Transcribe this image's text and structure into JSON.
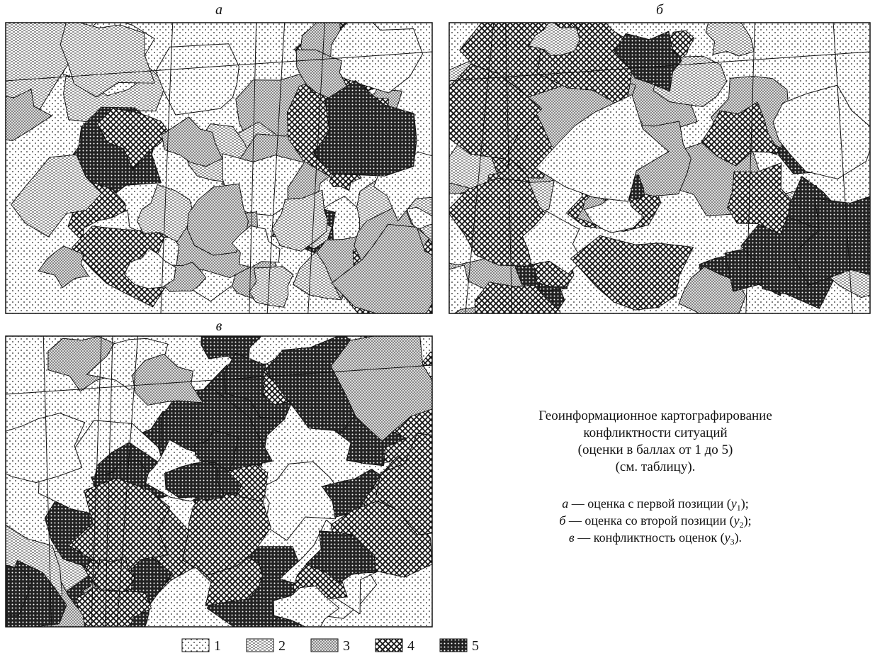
{
  "panels": [
    {
      "label": "а"
    },
    {
      "label": "б"
    },
    {
      "label": "в"
    }
  ],
  "legend": [
    "1",
    "2",
    "3",
    "4",
    "5"
  ],
  "caption": {
    "title": [
      "Геоинформационное картографирование",
      "конфликтности ситуаций",
      "(оценки в баллах от 1 до 5)",
      "(см. таблицу)."
    ],
    "notes": [
      {
        "letter": "а",
        "text": " — оценка с первой позиции (",
        "var": "y",
        "sub": "1",
        "close": ");"
      },
      {
        "letter": "б",
        "text": " — оценка со второй позиции (",
        "var": "y",
        "sub": "2",
        "close": ");"
      },
      {
        "letter": "в",
        "text": " — конфликтность оценок (",
        "var": "y",
        "sub": "3",
        "close": ")."
      }
    ]
  }
}
